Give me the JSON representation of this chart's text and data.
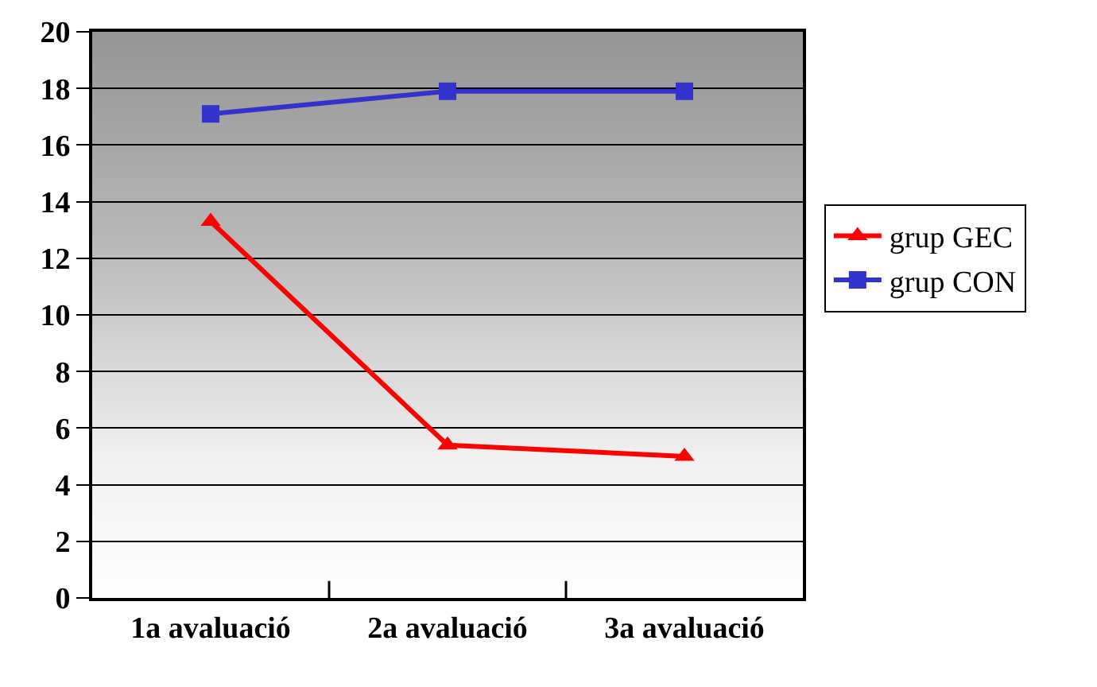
{
  "chart_data": {
    "type": "line",
    "categories": [
      "1a avaluació",
      "2a avaluació",
      "3a avaluació"
    ],
    "series": [
      {
        "name": "grup GEC",
        "color": "#ff0000",
        "marker": "triangle",
        "values": [
          13.3,
          5.4,
          5.0
        ]
      },
      {
        "name": "grup CON",
        "color": "#3333cc",
        "marker": "square",
        "values": [
          17.1,
          17.9,
          17.9
        ]
      }
    ],
    "ylim": [
      0,
      20
    ],
    "yticks": [
      0,
      2,
      4,
      6,
      8,
      10,
      12,
      14,
      16,
      18,
      20
    ],
    "grid": "y",
    "legend": "right",
    "line_style": "solid"
  }
}
